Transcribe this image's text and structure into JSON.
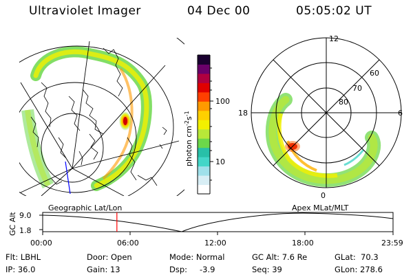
{
  "header": {
    "title": "Ultraviolet Imager",
    "date": "04 Dec 00",
    "time": "05:05:02 UT"
  },
  "colorbar": {
    "label": "photon cm-2s-1",
    "label_main": "photon cm",
    "label_exp1": "-2",
    "label_s": "s",
    "label_exp2": "-1",
    "ticks": [
      "100",
      "10"
    ],
    "tick_values": [
      100,
      10
    ],
    "colors": [
      "#ffffff",
      "#d8eef5",
      "#9fe0ea",
      "#43d6c8",
      "#28c0a8",
      "#6cd84a",
      "#b8e838",
      "#f2f000",
      "#ffd000",
      "#ff9a00",
      "#ff4000",
      "#e00000",
      "#b00040",
      "#6a006a",
      "#1a0030"
    ]
  },
  "polar_plot": {
    "hour_labels": [
      "12",
      "18",
      "6",
      "0"
    ],
    "lat_labels": [
      "60",
      "70",
      "80"
    ]
  },
  "timeline": {
    "axis_label": "GC Alt",
    "y_ticks": [
      "9.0",
      "1.8"
    ],
    "left_title": "Geographic Lat/Lon",
    "right_title": "Apex  MLat/MLT",
    "x_ticks": [
      "00:00",
      "06:00",
      "12:00",
      "18:00",
      "23:59"
    ],
    "current_time_hours": 5.08,
    "marker_color": "#ff0000"
  },
  "info": {
    "flt": "Flt: LBHL",
    "ip": "IP: 36.0",
    "door": "Door: Open",
    "gain": "Gain: 13",
    "mode": "Mode: Normal",
    "dsp_label": "Dsp:",
    "dsp_value": "-3.9",
    "gc_alt": "GC Alt: 7.6 Re",
    "seq": "Seq: 39",
    "glat": "GLat:  70.3",
    "glon": "GLon: 278.6"
  }
}
